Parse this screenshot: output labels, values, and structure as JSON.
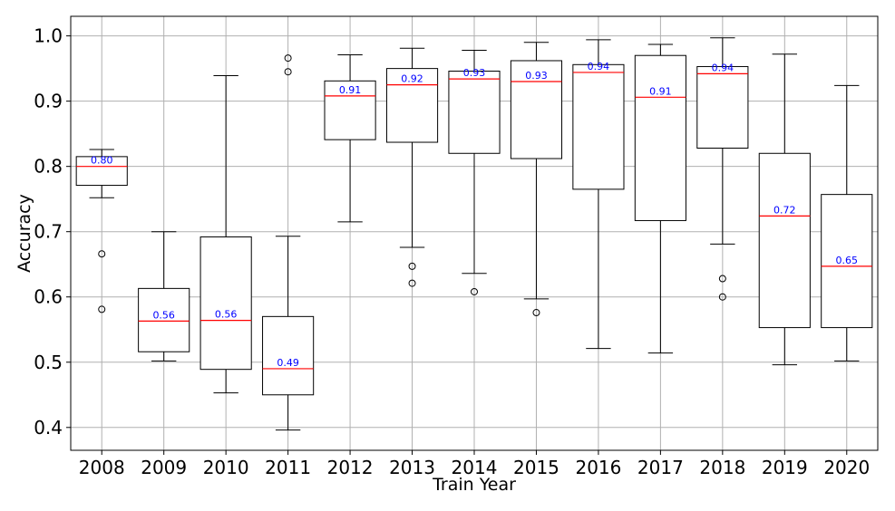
{
  "chart_data": {
    "type": "box",
    "xlabel": "Train Year",
    "ylabel": "Accuracy",
    "ylim": [
      0.365,
      1.03
    ],
    "yticks": [
      0.4,
      0.5,
      0.6,
      0.7,
      0.8,
      0.9,
      1.0
    ],
    "ytick_labels": [
      "0.4",
      "0.5",
      "0.6",
      "0.7",
      "0.8",
      "0.9",
      "1.0"
    ],
    "grid": true,
    "colors": {
      "box": "#000000",
      "median": "#ff0000",
      "median_label": "#0000ff",
      "grid": "#b0b0b0",
      "flier": "#000000"
    },
    "categories": [
      "2008",
      "2009",
      "2010",
      "2011",
      "2012",
      "2013",
      "2014",
      "2015",
      "2016",
      "2017",
      "2018",
      "2019",
      "2020"
    ],
    "boxes": [
      {
        "year": "2008",
        "whisker_low": 0.752,
        "q1": 0.771,
        "median": 0.8,
        "q3": 0.815,
        "whisker_high": 0.826,
        "outliers": [
          0.666,
          0.581
        ],
        "median_label": "0.80"
      },
      {
        "year": "2009",
        "whisker_low": 0.502,
        "q1": 0.516,
        "median": 0.563,
        "q3": 0.613,
        "whisker_high": 0.7,
        "outliers": [],
        "median_label": "0.56"
      },
      {
        "year": "2010",
        "whisker_low": 0.453,
        "q1": 0.489,
        "median": 0.564,
        "q3": 0.692,
        "whisker_high": 0.939,
        "outliers": [],
        "median_label": "0.56"
      },
      {
        "year": "2011",
        "whisker_low": 0.396,
        "q1": 0.45,
        "median": 0.49,
        "q3": 0.57,
        "whisker_high": 0.693,
        "outliers": [
          0.966,
          0.945
        ],
        "median_label": "0.49"
      },
      {
        "year": "2012",
        "whisker_low": 0.715,
        "q1": 0.841,
        "median": 0.908,
        "q3": 0.931,
        "whisker_high": 0.971,
        "outliers": [],
        "median_label": "0.91"
      },
      {
        "year": "2013",
        "whisker_low": 0.676,
        "q1": 0.837,
        "median": 0.925,
        "q3": 0.95,
        "whisker_high": 0.981,
        "outliers": [
          0.647,
          0.621
        ],
        "median_label": "0.92"
      },
      {
        "year": "2014",
        "whisker_low": 0.636,
        "q1": 0.82,
        "median": 0.934,
        "q3": 0.946,
        "whisker_high": 0.978,
        "outliers": [
          0.608
        ],
        "median_label": "0.93"
      },
      {
        "year": "2015",
        "whisker_low": 0.597,
        "q1": 0.812,
        "median": 0.93,
        "q3": 0.962,
        "whisker_high": 0.99,
        "outliers": [
          0.576
        ],
        "median_label": "0.93"
      },
      {
        "year": "2016",
        "whisker_low": 0.521,
        "q1": 0.765,
        "median": 0.944,
        "q3": 0.956,
        "whisker_high": 0.994,
        "outliers": [],
        "median_label": "0.94"
      },
      {
        "year": "2017",
        "whisker_low": 0.514,
        "q1": 0.717,
        "median": 0.906,
        "q3": 0.97,
        "whisker_high": 0.987,
        "outliers": [],
        "median_label": "0.91"
      },
      {
        "year": "2018",
        "whisker_low": 0.681,
        "q1": 0.828,
        "median": 0.942,
        "q3": 0.953,
        "whisker_high": 0.997,
        "outliers": [
          0.628,
          0.6
        ],
        "median_label": "0.94"
      },
      {
        "year": "2019",
        "whisker_low": 0.496,
        "q1": 0.553,
        "median": 0.724,
        "q3": 0.82,
        "whisker_high": 0.972,
        "outliers": [],
        "median_label": "0.72"
      },
      {
        "year": "2020",
        "whisker_low": 0.502,
        "q1": 0.553,
        "median": 0.647,
        "q3": 0.757,
        "whisker_high": 0.924,
        "outliers": [],
        "median_label": "0.65"
      }
    ]
  }
}
